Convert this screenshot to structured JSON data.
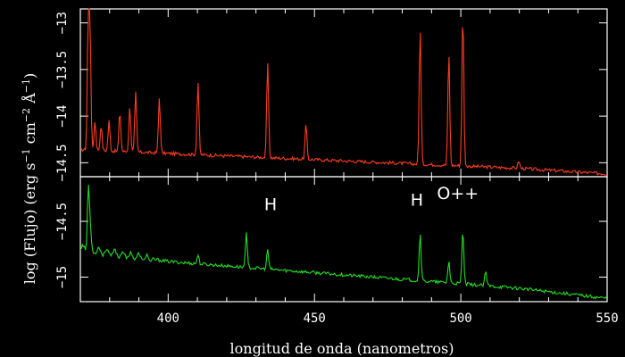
{
  "chart_data": {
    "type": "line",
    "xlabel": "longitud de onda (nanometros)",
    "ylabel_parts": [
      "log (Flujo) (erg s",
      "−1",
      " cm",
      "−2",
      " Å",
      "−1",
      ")"
    ],
    "xlim": [
      370,
      550
    ],
    "x_ticks": [
      400,
      450,
      500,
      550
    ],
    "panels": [
      {
        "name": "",
        "color": "#ff3b1f",
        "ylim": [
          -14.65,
          -12.85
        ],
        "y_ticks": [
          {
            "value": -14.5,
            "label": "−14.5"
          },
          {
            "value": -14,
            "label": "−14"
          },
          {
            "value": -13.5,
            "label": "−13.5"
          },
          {
            "value": -13,
            "label": "−13"
          }
        ],
        "continuum": [
          [
            370,
            -14.36
          ],
          [
            400,
            -14.4
          ],
          [
            430,
            -14.44
          ],
          [
            460,
            -14.48
          ],
          [
            490,
            -14.52
          ],
          [
            520,
            -14.56
          ],
          [
            550,
            -14.62
          ]
        ],
        "lines": [
          [
            372.7,
            -12.95
          ],
          [
            373.3,
            -13.15
          ],
          [
            375.0,
            -14.05
          ],
          [
            377.1,
            -14.1
          ],
          [
            379.8,
            -14.05
          ],
          [
            383.5,
            -13.95
          ],
          [
            386.9,
            -13.9
          ],
          [
            388.9,
            -13.75
          ],
          [
            397.0,
            -13.8
          ],
          [
            410.2,
            -13.63
          ],
          [
            434.0,
            -13.42
          ],
          [
            447.1,
            -14.09
          ],
          [
            486.1,
            -13.04
          ],
          [
            495.9,
            -13.3
          ],
          [
            500.7,
            -12.86
          ],
          [
            519.8,
            -14.48
          ]
        ]
      },
      {
        "name": "",
        "color": "#22dd22",
        "ylim": [
          -15.22,
          -14.1
        ],
        "y_ticks": [
          {
            "value": -15,
            "label": "−15"
          },
          {
            "value": -14.5,
            "label": "−14.5"
          }
        ],
        "continuum": [
          [
            370,
            -14.74
          ],
          [
            400,
            -14.86
          ],
          [
            430,
            -14.92
          ],
          [
            460,
            -14.98
          ],
          [
            490,
            -15.04
          ],
          [
            520,
            -15.1
          ],
          [
            550,
            -15.19
          ]
        ],
        "lines": [
          [
            372.7,
            -14.2
          ],
          [
            373.3,
            -14.55
          ],
          [
            410.2,
            -14.8
          ],
          [
            426.7,
            -14.6
          ],
          [
            434.0,
            -14.75
          ],
          [
            486.1,
            -14.6
          ],
          [
            495.9,
            -14.85
          ],
          [
            500.7,
            -14.58
          ],
          [
            508.5,
            -14.95
          ]
        ],
        "annotations": [
          {
            "text": "H",
            "x": 435,
            "y": -14.4
          },
          {
            "text": "H",
            "x": 485,
            "y": -14.36
          },
          {
            "text": "O++",
            "x": 499,
            "y": -14.3
          }
        ]
      }
    ]
  }
}
